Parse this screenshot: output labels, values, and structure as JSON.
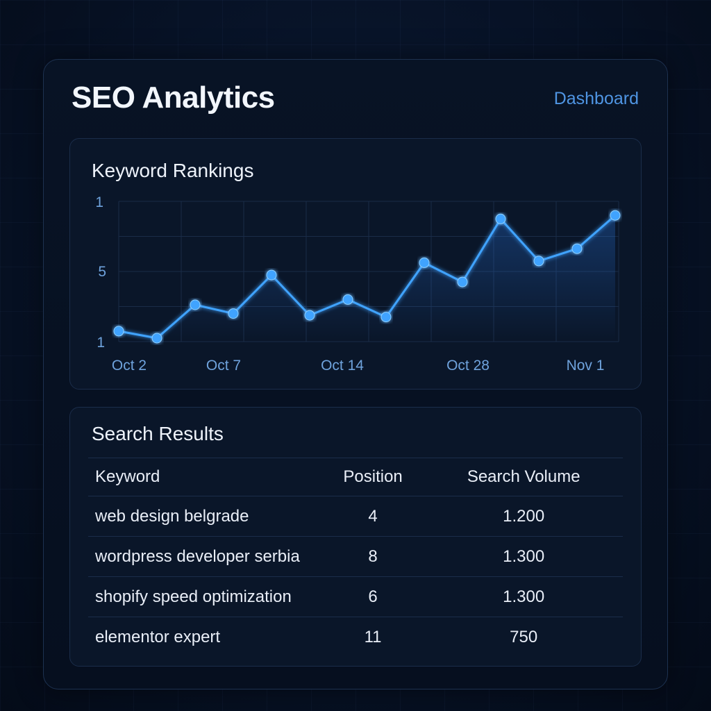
{
  "header": {
    "title": "SEO Analytics",
    "nav_link": "Dashboard"
  },
  "rankings_panel": {
    "title": "Keyword Rankings"
  },
  "chart_data": {
    "type": "line",
    "title": "Keyword Rankings",
    "y_tick_labels": [
      "1",
      "5",
      "1"
    ],
    "x_tick_labels": [
      "Oct 2",
      "Oct 7",
      "Oct 14",
      "Oct 28",
      "Nov 1"
    ],
    "values": [
      8.4,
      8.8,
      6.9,
      7.4,
      5.2,
      7.5,
      6.6,
      7.6,
      4.5,
      5.6,
      2.0,
      4.4,
      3.7,
      1.8
    ],
    "ylim": [
      9,
      1
    ],
    "grid": true,
    "color": "#3fa3ff"
  },
  "results_panel": {
    "title": "Search Results",
    "columns": [
      "Keyword",
      "Position",
      "Search Volume"
    ],
    "rows": [
      {
        "keyword": "web design belgrade",
        "position": "4",
        "volume": "1.200"
      },
      {
        "keyword": "wordpress developer serbia",
        "position": "8",
        "volume": "1.300"
      },
      {
        "keyword": "shopify speed optimization",
        "position": "6",
        "volume": "1.300"
      },
      {
        "keyword": "elementor expert",
        "position": "11",
        "volume": "750"
      }
    ]
  },
  "colors": {
    "accent": "#4f95e3",
    "line": "#3fa3ff",
    "background": "#071226"
  }
}
